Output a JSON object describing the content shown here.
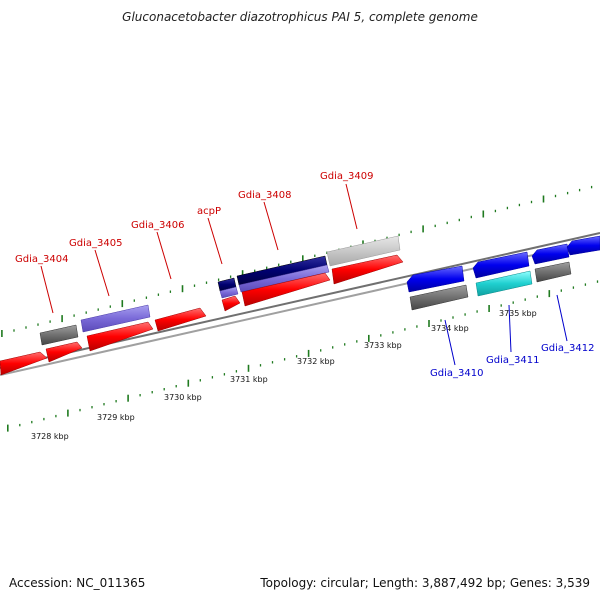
{
  "title": "Gluconacetobacter diazotrophicus PAI 5, complete genome",
  "footer": {
    "accession": "Accession: NC_011365",
    "stats": "Topology: circular; Length: 3,887,492 bp; Genes: 3,539"
  },
  "colors": {
    "backbone": "#8a8a8a",
    "tick": "#1f7a1f",
    "label_top": "#cc0000",
    "label_bottom": "#0000cc"
  },
  "scale_labels": [
    "3728 kbp",
    "3729 kbp",
    "3730 kbp",
    "3731 kbp",
    "3732 kbp",
    "3733 kbp",
    "3734 kbp",
    "3735 kbp"
  ],
  "gene_labels_top": [
    "Gdia_3404",
    "Gdia_3405",
    "Gdia_3406",
    "acpP",
    "Gdia_3408",
    "Gdia_3409"
  ],
  "gene_labels_bottom": [
    "Gdia_3410",
    "Gdia_3411",
    "Gdia_3412"
  ]
}
